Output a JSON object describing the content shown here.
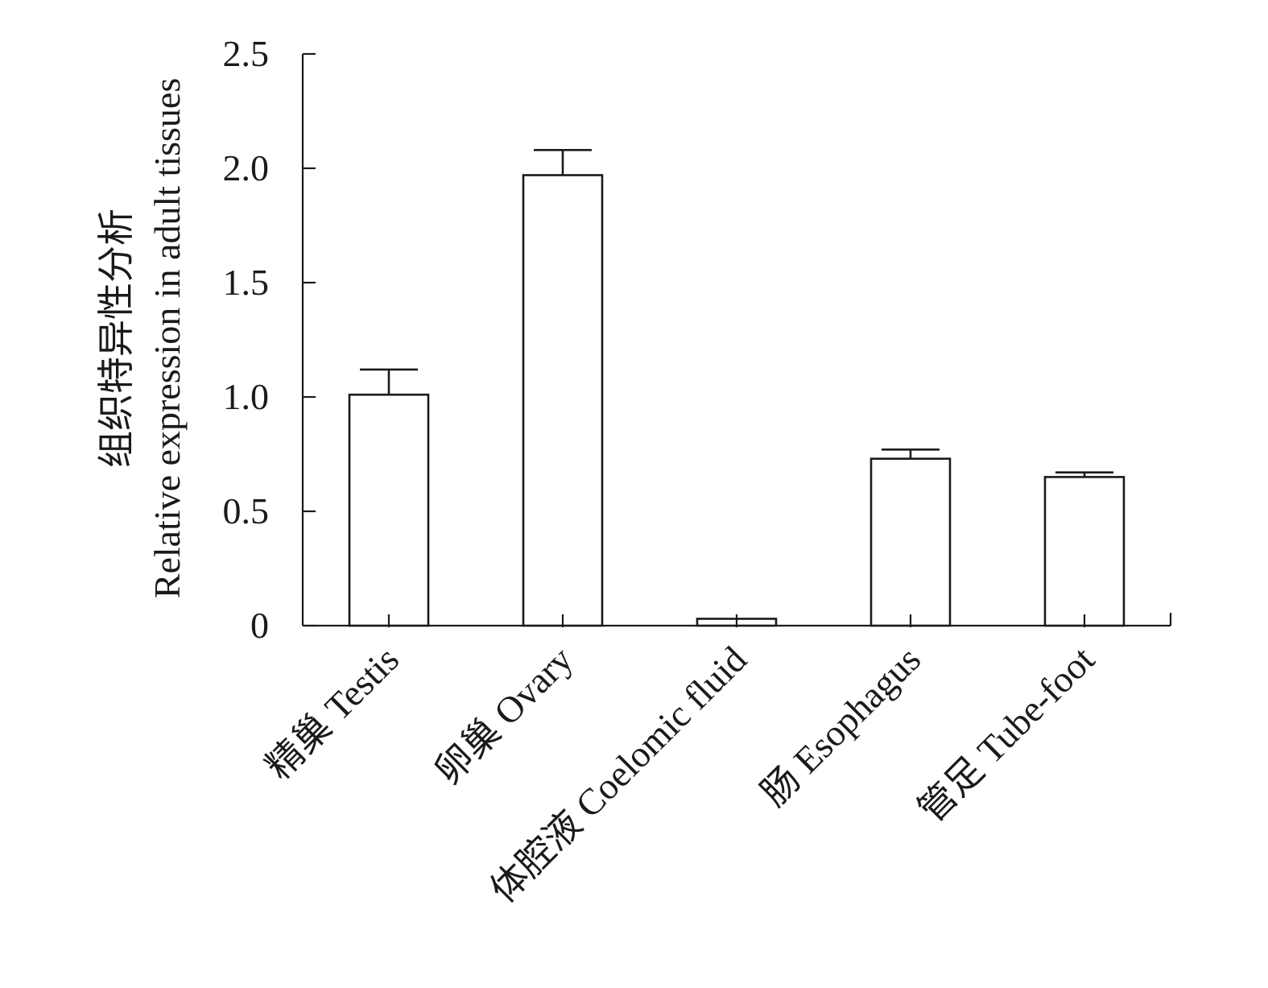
{
  "chart_data": {
    "type": "bar",
    "title": "",
    "ylabel_line1": "组织特异性分析",
    "ylabel_line2": "Relative expression in adult tissues",
    "xlabel": "",
    "categories": [
      "精巢 Testis",
      "卵巢 Ovary",
      "体腔液 Coelomic fluid",
      "肠 Esophagus",
      "管足 Tube-foot"
    ],
    "values": [
      1.01,
      1.97,
      0.03,
      0.73,
      0.65
    ],
    "errors": [
      0.11,
      0.11,
      0.0,
      0.04,
      0.02
    ],
    "ylim": [
      0,
      2.5
    ],
    "yticks": [
      0,
      0.5,
      1.0,
      1.5,
      2.0,
      2.5
    ],
    "ytick_labels": [
      "0",
      "0.5",
      "1.0",
      "1.5",
      "2.0",
      "2.5"
    ],
    "bar_fill": "#ffffff",
    "bar_stroke": "#1a1a1a",
    "grid": false,
    "legend": "none"
  }
}
